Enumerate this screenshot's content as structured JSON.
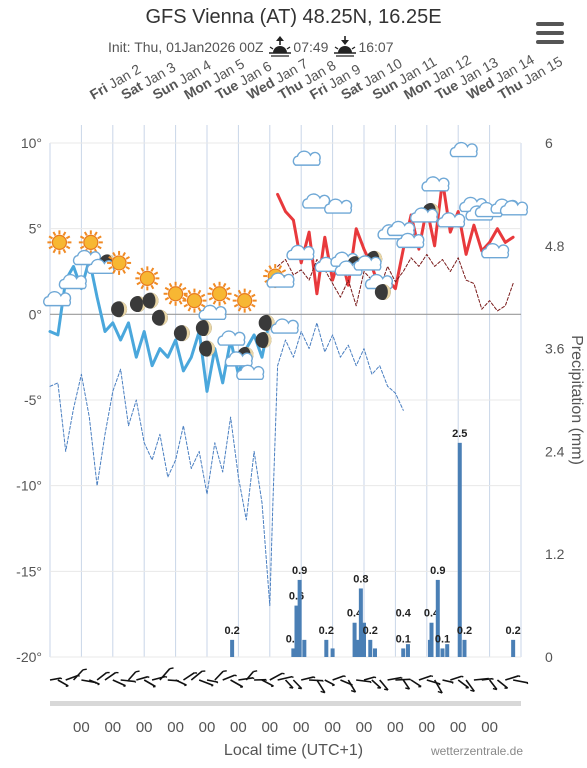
{
  "title": "GFS Vienna (AT) 48.25N, 16.25E",
  "subtitle": {
    "init": "Init: Thu, 01Jan2026 00Z",
    "sunrise": "07:49",
    "sunset": "16:07"
  },
  "menu_icon": "hamburger-menu-icon",
  "credits": "wetterzentrale.de",
  "chart_data": {
    "type": "line",
    "x_axis": {
      "title": "Local time (UTC+1)",
      "tick_labels": [
        "00",
        "00",
        "00",
        "00",
        "00",
        "00",
        "00",
        "00",
        "00",
        "00",
        "00",
        "00",
        "00",
        "00"
      ],
      "top_labels": [
        {
          "day": "Fri",
          "date": "Jan 2"
        },
        {
          "day": "Sat",
          "date": "Jan 3"
        },
        {
          "day": "Sun",
          "date": "Jan 4"
        },
        {
          "day": "Mon",
          "date": "Jan 5"
        },
        {
          "day": "Tue",
          "date": "Jan 6"
        },
        {
          "day": "Wed",
          "date": "Jan 7"
        },
        {
          "day": "Thu",
          "date": "Jan 8"
        },
        {
          "day": "Fri",
          "date": "Jan 9"
        },
        {
          "day": "Sat",
          "date": "Jan 10"
        },
        {
          "day": "Sun",
          "date": "Jan 11"
        },
        {
          "day": "Mon",
          "date": "Jan 12"
        },
        {
          "day": "Tue",
          "date": "Jan 13"
        },
        {
          "day": "Wed",
          "date": "Jan 14"
        },
        {
          "day": "Thu",
          "date": "Jan 15"
        }
      ],
      "range_days": [
        0,
        15
      ]
    },
    "y_left": {
      "ticks": [
        "10°",
        "5°",
        "0°",
        "-5°",
        "-10°",
        "-15°",
        "-20°"
      ],
      "range": [
        -20,
        10
      ]
    },
    "y_right": {
      "title": "Precipitation (mm)",
      "ticks": [
        "6",
        "4.8",
        "3.6",
        "2.4",
        "1.2",
        "0"
      ],
      "range": [
        0,
        6
      ]
    },
    "series": [
      {
        "color": "#e8393c",
        "style": "solid",
        "x": [
          0,
          0.25,
          0.5,
          0.75,
          1,
          1.25,
          1.5,
          1.75,
          2,
          2.25,
          2.5,
          2.75,
          3,
          3.25,
          3.5,
          3.75,
          4,
          4.25,
          4.5,
          4.75,
          5,
          5.25,
          5.5,
          5.75,
          6,
          6.25,
          6.5,
          6.75,
          7,
          7.1,
          7.25,
          7.5,
          7.75,
          8,
          8.25,
          8.5,
          8.75,
          9,
          9.25,
          9.5,
          9.75,
          10,
          10.25,
          10.5,
          10.75,
          11,
          11.25,
          11.5,
          11.75,
          12,
          12.25,
          12.5,
          12.75,
          13,
          13.25,
          13.5,
          13.75,
          14,
          14.25,
          14.5,
          14.75
        ],
        "values": [
          null,
          null,
          null,
          null,
          null,
          null,
          null,
          null,
          null,
          null,
          null,
          null,
          null,
          null,
          null,
          null,
          null,
          null,
          null,
          null,
          null,
          null,
          null,
          null,
          null,
          null,
          null,
          null,
          null,
          null,
          7,
          6,
          5.5,
          3,
          4.8,
          1.2,
          4.5,
          2,
          3.5,
          1.7,
          5,
          3.8,
          2.8,
          1.5,
          2,
          1.5,
          3.8,
          5.8,
          3.8,
          6.2,
          4,
          7.8,
          4.8,
          6,
          3.5,
          5.2,
          3.7,
          4.2,
          5,
          4.2,
          4.5
        ]
      },
      {
        "color": "#4aa7dc",
        "style": "solid",
        "x": [
          0,
          0.25,
          0.5,
          0.75,
          1,
          1.25,
          1.5,
          1.75,
          2,
          2.25,
          2.5,
          2.75,
          3,
          3.25,
          3.5,
          3.75,
          4,
          4.25,
          4.5,
          4.75,
          5,
          5.25,
          5.5,
          5.75,
          6,
          6.25,
          6.5,
          6.75,
          7,
          7.1,
          7.25,
          7.5,
          7.75,
          8,
          8.25,
          8.5,
          8.75,
          9,
          9.25,
          9.5,
          9.75,
          10,
          10.25,
          10.5,
          10.75,
          11,
          11.25,
          11.5,
          11.75,
          12,
          12.25,
          12.5,
          12.75,
          13,
          13.25,
          13.5,
          13.75,
          14,
          14.25,
          14.5,
          14.75
        ],
        "values": [
          -1,
          -1.2,
          2,
          2.8,
          1.5,
          3.2,
          1,
          -1,
          -0.5,
          -1.5,
          -0.5,
          -2.5,
          -1,
          -3,
          -2,
          -2.5,
          -1.5,
          -3.3,
          -2.5,
          -1,
          -4.5,
          -2,
          -4,
          -1.5,
          -3.5,
          -2,
          -1.2,
          -2.5,
          -0.3,
          -1,
          null,
          null,
          null,
          null,
          null,
          null,
          null,
          null,
          null,
          null,
          null,
          null,
          null,
          null,
          null,
          null,
          null,
          null,
          null,
          null,
          null,
          null,
          null,
          null,
          null,
          null,
          null,
          null,
          null,
          null,
          null
        ]
      },
      {
        "color": "#4a7fc1",
        "style": "dashed",
        "x": [
          0,
          0.25,
          0.5,
          0.75,
          1,
          1.25,
          1.5,
          1.75,
          2,
          2.25,
          2.5,
          2.75,
          3,
          3.25,
          3.5,
          3.75,
          4,
          4.25,
          4.5,
          4.75,
          5,
          5.25,
          5.5,
          5.75,
          6,
          6.25,
          6.5,
          6.75,
          7,
          7.1,
          7.25,
          7.5,
          7.75,
          8,
          8.25,
          8.5,
          8.75,
          9,
          9.25,
          9.5,
          9.75,
          10,
          10.25,
          10.5,
          10.75,
          11,
          11.25,
          11.5,
          11.75,
          12,
          12.25,
          12.5,
          12.75,
          13,
          13.25,
          13.5,
          13.75,
          14,
          14.25,
          14.5,
          14.75
        ],
        "values": [
          -4.2,
          -4,
          -8,
          -5.5,
          -3.5,
          -6,
          -10,
          -7,
          -4.5,
          -3.2,
          -6.5,
          -5,
          -7.5,
          -8.5,
          -7,
          -9.5,
          -8.5,
          -6.5,
          -9,
          -8,
          -10.5,
          -7.5,
          -9.2,
          -6,
          -9.5,
          -12,
          -8,
          -11,
          -17,
          -11,
          -3,
          -1.5,
          -2.5,
          -1,
          -2,
          -0.5,
          -2.2,
          -1.2,
          -2.5,
          -1.8,
          -3,
          -2,
          -3.5,
          -3,
          -4.2,
          -4.6,
          -5.6,
          null,
          null,
          null,
          null,
          null,
          null,
          null,
          null,
          null,
          null,
          null,
          null,
          null,
          null
        ]
      },
      {
        "color": "#7a1b1b",
        "style": "dashed",
        "x": [
          0,
          0.25,
          0.5,
          0.75,
          1,
          1.25,
          1.5,
          1.75,
          2,
          2.25,
          2.5,
          2.75,
          3,
          3.25,
          3.5,
          3.75,
          4,
          4.25,
          4.5,
          4.75,
          5,
          5.25,
          5.5,
          5.75,
          6,
          6.25,
          6.5,
          6.75,
          7,
          7.1,
          7.25,
          7.5,
          7.75,
          8,
          8.25,
          8.5,
          8.75,
          9,
          9.25,
          9.5,
          9.75,
          10,
          10.25,
          10.5,
          10.75,
          11,
          11.25,
          11.5,
          11.75,
          12,
          12.25,
          12.5,
          12.75,
          13,
          13.25,
          13.5,
          13.75,
          14,
          14.25,
          14.5,
          14.75
        ],
        "values": [
          null,
          null,
          null,
          null,
          null,
          null,
          null,
          null,
          null,
          null,
          null,
          null,
          null,
          null,
          null,
          null,
          null,
          null,
          null,
          null,
          null,
          null,
          null,
          null,
          null,
          null,
          null,
          null,
          null,
          null,
          2.8,
          3.2,
          2.3,
          2.6,
          2,
          3.2,
          2.6,
          1.8,
          1,
          2,
          0.5,
          2.5,
          2,
          1.5,
          2.8,
          1.9,
          2.5,
          3.3,
          2.8,
          3.5,
          2.8,
          3.2,
          2.5,
          3.3,
          2,
          1.8,
          0.3,
          0.8,
          0.2,
          0.5,
          1.8
        ]
      }
    ],
    "precipitation": [
      {
        "x": 5.8,
        "value": 0.2,
        "label": "0.2"
      },
      {
        "x": 7.75,
        "value": 0.1,
        "label": "0.1"
      },
      {
        "x": 7.85,
        "value": 0.6,
        "label": "0.6"
      },
      {
        "x": 7.95,
        "value": 0.9,
        "label": "0.9"
      },
      {
        "x": 8.1,
        "value": 0.2
      },
      {
        "x": 8.8,
        "value": 0.2,
        "label": "0.2"
      },
      {
        "x": 9.0,
        "value": 0.1
      },
      {
        "x": 9.7,
        "value": 0.4,
        "label": "0.4"
      },
      {
        "x": 9.8,
        "value": 0.2
      },
      {
        "x": 9.9,
        "value": 0.8,
        "label": "0.8"
      },
      {
        "x": 10.0,
        "value": 0.4
      },
      {
        "x": 10.2,
        "value": 0.2,
        "label": "0.2"
      },
      {
        "x": 10.35,
        "value": 0.1
      },
      {
        "x": 11.25,
        "value": 0.1,
        "label": "0.1"
      },
      {
        "x": 11.4,
        "value": 0.15
      },
      {
        "x": 12.1,
        "value": 0.2
      },
      {
        "x": 12.15,
        "value": 0.4,
        "label": "0.4"
      },
      {
        "x": 12.35,
        "value": 0.9,
        "label": "0.9"
      },
      {
        "x": 12.5,
        "value": 0.1,
        "label": "0.1"
      },
      {
        "x": 12.65,
        "value": 0.15
      },
      {
        "x": 13.05,
        "value": 2.5,
        "label": "2.5"
      },
      {
        "x": 13.2,
        "value": 0.2,
        "label": "0.2"
      },
      {
        "x": 14.75,
        "value": 0.2,
        "label": "0.2"
      }
    ],
    "precip_extra_labels": [
      {
        "x": 11.25,
        "y": 0.4,
        "text": "0.4"
      }
    ],
    "weather_icons": [
      {
        "x": 0.3,
        "y": 4.2,
        "type": "sun"
      },
      {
        "x": 1.3,
        "y": 4.2,
        "type": "sun"
      },
      {
        "x": 0.25,
        "y": 0.8,
        "type": "cloud"
      },
      {
        "x": 0.75,
        "y": 1.8,
        "type": "cloud"
      },
      {
        "x": 1.2,
        "y": 3.2,
        "type": "cloud"
      },
      {
        "x": 1.7,
        "y": 2.8,
        "type": "moon-cloud"
      },
      {
        "x": 2.2,
        "y": 3.0,
        "type": "sun"
      },
      {
        "x": 2.2,
        "y": 0.3,
        "type": "moon"
      },
      {
        "x": 2.8,
        "y": 0.6,
        "type": "moon"
      },
      {
        "x": 3.1,
        "y": 2.1,
        "type": "sun"
      },
      {
        "x": 3.2,
        "y": 0.8,
        "type": "moon"
      },
      {
        "x": 3.5,
        "y": -0.2,
        "type": "moon"
      },
      {
        "x": 4.0,
        "y": 1.2,
        "type": "sun"
      },
      {
        "x": 4.2,
        "y": -1.1,
        "type": "moon"
      },
      {
        "x": 4.6,
        "y": 0.8,
        "type": "sun"
      },
      {
        "x": 4.9,
        "y": -0.8,
        "type": "moon"
      },
      {
        "x": 5.2,
        "y": 0,
        "type": "cloud"
      },
      {
        "x": 5.4,
        "y": 1.2,
        "type": "sun"
      },
      {
        "x": 5.0,
        "y": -2.0,
        "type": "moon"
      },
      {
        "x": 5.8,
        "y": -1.5,
        "type": "cloud"
      },
      {
        "x": 6.1,
        "y": -2.6,
        "type": "moon-cloud"
      },
      {
        "x": 6.2,
        "y": 0.8,
        "type": "sun"
      },
      {
        "x": 6.4,
        "y": -3.5,
        "type": "cloud"
      },
      {
        "x": 6.8,
        "y": -1.5,
        "type": "moon"
      },
      {
        "x": 7.3,
        "y": 2.0,
        "type": "sun-cloud"
      },
      {
        "x": 6.9,
        "y": -0.5,
        "type": "moon"
      },
      {
        "x": 7.5,
        "y": -0.8,
        "type": "cloud"
      },
      {
        "x": 8.2,
        "y": 9.0,
        "type": "cloud"
      },
      {
        "x": 8.0,
        "y": 3.5,
        "type": "cloud"
      },
      {
        "x": 8.5,
        "y": 6.5,
        "type": "cloud"
      },
      {
        "x": 8.9,
        "y": 2.8,
        "type": "cloud"
      },
      {
        "x": 9.4,
        "y": 3.1,
        "type": "cloud"
      },
      {
        "x": 9.6,
        "y": 2.7,
        "type": "moon-cloud"
      },
      {
        "x": 9.2,
        "y": 6.2,
        "type": "cloud"
      },
      {
        "x": 10.2,
        "y": 3.0,
        "type": "moon-cloud"
      },
      {
        "x": 10.5,
        "y": 1.8,
        "type": "cloud"
      },
      {
        "x": 10.9,
        "y": 4.7,
        "type": "cloud"
      },
      {
        "x": 10.6,
        "y": 1.3,
        "type": "moon"
      },
      {
        "x": 11.2,
        "y": 4.9,
        "type": "cloud"
      },
      {
        "x": 11.5,
        "y": 4.2,
        "type": "cloud"
      },
      {
        "x": 12.0,
        "y": 5.8,
        "type": "moon-cloud"
      },
      {
        "x": 12.3,
        "y": 7.5,
        "type": "cloud"
      },
      {
        "x": 12.8,
        "y": 5.4,
        "type": "cloud"
      },
      {
        "x": 13.2,
        "y": 9.5,
        "type": "cloud"
      },
      {
        "x": 13.5,
        "y": 6.3,
        "type": "cloud"
      },
      {
        "x": 13.7,
        "y": 5.8,
        "type": "cloud"
      },
      {
        "x": 14.0,
        "y": 6.0,
        "type": "cloud"
      },
      {
        "x": 14.2,
        "y": 3.6,
        "type": "cloud"
      },
      {
        "x": 14.5,
        "y": 6.2,
        "type": "cloud"
      },
      {
        "x": 14.8,
        "y": 6.1,
        "type": "cloud"
      }
    ]
  }
}
